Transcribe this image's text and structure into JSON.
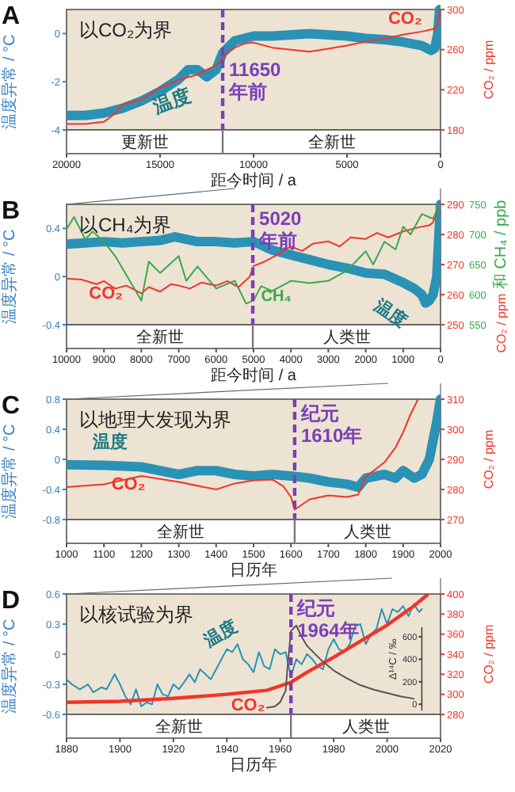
{
  "chart_data": [
    {
      "type": "line",
      "title": "A",
      "subtitle": "以CO₂为界",
      "xlabel": "距今时间 / a",
      "ylabel": "温度异常 / °C",
      "y2label": "CO₂ / ppm",
      "xlim": [
        20000,
        0
      ],
      "xticks": [
        20000,
        15000,
        10000,
        5000,
        0
      ],
      "ylim": [
        -4,
        1
      ],
      "yticks": [
        -4,
        -2,
        0
      ],
      "y2lim": [
        180,
        300
      ],
      "y2ticks": [
        180,
        220,
        260,
        300
      ],
      "series": [
        {
          "name": "温度",
          "color": "#2a92b4",
          "x": [
            20000,
            19000,
            18000,
            17000,
            16000,
            15000,
            14000,
            13500,
            13000,
            12500,
            12000,
            11650,
            11000,
            10000,
            9000,
            8000,
            7000,
            6000,
            5000,
            4000,
            3000,
            2000,
            1000,
            500,
            300,
            150,
            50
          ],
          "values": [
            -3.4,
            -3.4,
            -3.3,
            -3.1,
            -2.8,
            -2.4,
            -1.9,
            -1.5,
            -1.5,
            -1.8,
            -1.5,
            -0.8,
            -0.3,
            -0.1,
            -0.1,
            -0.05,
            0,
            -0.05,
            -0.1,
            -0.2,
            -0.25,
            -0.35,
            -0.5,
            -0.7,
            -0.6,
            0,
            1
          ]
        },
        {
          "name": "CO₂",
          "color": "#f0352a",
          "axis": "y2",
          "x": [
            20000,
            19000,
            18000,
            17500,
            17000,
            16000,
            15000,
            14000,
            13000,
            12500,
            12000,
            11500,
            11000,
            10500,
            10000,
            9000,
            8000,
            7000,
            6000,
            5000,
            4000,
            3000,
            2000,
            1000,
            500,
            200,
            100,
            50
          ],
          "values": [
            186,
            186,
            188,
            195,
            205,
            210,
            222,
            230,
            235,
            240,
            244,
            255,
            262,
            266,
            267,
            262,
            260,
            258,
            261,
            264,
            268,
            271,
            275,
            278,
            280,
            282,
            290,
            300
          ]
        }
      ],
      "ref_lines": [
        {
          "axis": "x",
          "value": 11650,
          "label": "11650 年前",
          "color": "#7a3fb8",
          "line_style": "dashed"
        }
      ],
      "annotations": [
        "更新世",
        "全新世"
      ]
    },
    {
      "type": "line",
      "title": "B",
      "subtitle": "以CH₄为界",
      "xlabel": "距今时间 / a",
      "ylabel": "温度异常 / °C",
      "y2label": "CO₂ / ppm",
      "y3label": "和 CH₄ / ppb",
      "xlim": [
        10000,
        0
      ],
      "xticks": [
        10000,
        9000,
        8000,
        7000,
        6000,
        5000,
        4000,
        3000,
        2000,
        1000,
        0
      ],
      "ylim": [
        -0.4,
        0.6
      ],
      "yticks": [
        -0.4,
        0,
        0.4
      ],
      "y2lim": [
        250,
        290
      ],
      "y2ticks": [
        250,
        260,
        270,
        280,
        290
      ],
      "y3lim": [
        550,
        750
      ],
      "y3ticks": [
        550,
        600,
        650,
        700,
        750
      ],
      "series": [
        {
          "name": "温度",
          "color": "#2a92b4",
          "x": [
            10000,
            9500,
            9000,
            8500,
            8000,
            7500,
            7100,
            6500,
            6000,
            5500,
            5000,
            4500,
            4000,
            3500,
            3000,
            2500,
            2000,
            1500,
            1000,
            700,
            500,
            400,
            300,
            200,
            100,
            50,
            0
          ],
          "values": [
            0.27,
            0.28,
            0.29,
            0.28,
            0.29,
            0.3,
            0.33,
            0.29,
            0.29,
            0.28,
            0.29,
            0.22,
            0.18,
            0.14,
            0.1,
            0.07,
            0.03,
            0.02,
            -0.05,
            -0.1,
            -0.15,
            -0.22,
            -0.2,
            -0.15,
            0,
            0.3,
            0.6
          ]
        },
        {
          "name": "CO₂",
          "color": "#f0352a",
          "axis": "y2",
          "x": [
            10000,
            9600,
            9200,
            9000,
            8700,
            8400,
            8000,
            7800,
            7500,
            7200,
            7000,
            6700,
            6400,
            6000,
            5700,
            5400,
            5100,
            5000,
            4700,
            4400,
            4000,
            3700,
            3400,
            3000,
            2700,
            2400,
            2000,
            1700,
            1400,
            1000,
            700,
            500,
            300,
            200,
            100,
            0
          ],
          "values": [
            265.3,
            265,
            263.5,
            264.5,
            262,
            263,
            260.4,
            262.5,
            261,
            263.5,
            263,
            262,
            264,
            263,
            264.5,
            262.5,
            266,
            269.5,
            271,
            273,
            276,
            274.5,
            277,
            277.7,
            276,
            279,
            278.5,
            280.5,
            279,
            281,
            282,
            282.6,
            283,
            284,
            287.5,
            290
          ]
        },
        {
          "name": "CH₄",
          "color": "#3aa84a",
          "axis": "y3",
          "x": [
            10000,
            9800,
            9500,
            9300,
            9000,
            8700,
            8500,
            8000,
            7800,
            7500,
            7000,
            6800,
            6500,
            6000,
            5500,
            5200,
            5000,
            4800,
            4500,
            4000,
            3500,
            3000,
            2500,
            2000,
            1800,
            1500,
            1200,
            1000,
            800,
            500,
            200,
            100,
            0
          ],
          "values": [
            709,
            729,
            692,
            705,
            688,
            664,
            643,
            590,
            655,
            636,
            664,
            623,
            647,
            610,
            623,
            585,
            590,
            614,
            606,
            623,
            619,
            623,
            640,
            672,
            650,
            688,
            675,
            713,
            700,
            734,
            726,
            740,
            750
          ]
        }
      ],
      "ref_lines": [
        {
          "axis": "x",
          "value": 5020,
          "label": "5020 年前",
          "color": "#7a3fb8",
          "line_style": "dashed"
        }
      ],
      "annotations": [
        "全新世",
        "人类世"
      ]
    },
    {
      "type": "line",
      "title": "C",
      "subtitle": "以地理大发现为界",
      "xlabel": "日历年",
      "ylabel": "温度异常 / °C",
      "y2label": "CO₂ / ppm",
      "xlim": [
        1000,
        2000
      ],
      "xticks": [
        1000,
        1100,
        1200,
        1300,
        1400,
        1500,
        1600,
        1700,
        1800,
        1900,
        2000
      ],
      "ylim": [
        -0.8,
        0.8
      ],
      "yticks": [
        -0.8,
        -0.4,
        0,
        0.4,
        0.8
      ],
      "y2lim": [
        270,
        310
      ],
      "y2ticks": [
        270,
        280,
        290,
        300,
        310
      ],
      "series": [
        {
          "name": "温度",
          "color": "#2a92b4",
          "x": [
            1000,
            1100,
            1200,
            1250,
            1300,
            1350,
            1400,
            1450,
            1500,
            1550,
            1600,
            1650,
            1700,
            1750,
            1780,
            1800,
            1850,
            1880,
            1900,
            1930,
            1950,
            1970,
            1990,
            2000
          ],
          "values": [
            -0.07,
            -0.08,
            -0.1,
            -0.15,
            -0.2,
            -0.15,
            -0.15,
            -0.2,
            -0.22,
            -0.2,
            -0.22,
            -0.25,
            -0.3,
            -0.33,
            -0.37,
            -0.25,
            -0.2,
            -0.25,
            -0.15,
            -0.25,
            -0.2,
            0,
            0.5,
            0.8
          ]
        },
        {
          "name": "CO₂",
          "color": "#f0352a",
          "axis": "y2",
          "x": [
            1000,
            1100,
            1200,
            1300,
            1400,
            1450,
            1500,
            1550,
            1580,
            1600,
            1610,
            1650,
            1700,
            1750,
            1780,
            1800,
            1850,
            1880,
            1900,
            1920,
            1940
          ],
          "values": [
            280.8,
            281.7,
            284.5,
            282.5,
            280,
            282,
            283,
            283.3,
            281,
            277.5,
            273.3,
            276.7,
            278,
            277.5,
            278.3,
            284.2,
            289,
            294,
            299,
            305,
            310
          ]
        }
      ],
      "ref_lines": [
        {
          "axis": "x",
          "value": 1610,
          "label": "纪元 1610年",
          "color": "#7a3fb8",
          "line_style": "dashed"
        }
      ],
      "annotations": [
        "全新世",
        "人类世"
      ]
    },
    {
      "type": "line",
      "title": "D",
      "subtitle": "以核试验为界",
      "xlabel": "日历年",
      "ylabel": "温度异常 / °C",
      "y2label": "CO₂ / ppm",
      "y3label": "Δ¹⁴C / ‰",
      "xlim": [
        1880,
        2020
      ],
      "xticks": [
        1880,
        1900,
        1920,
        1940,
        1960,
        1980,
        2000,
        2020
      ],
      "ylim": [
        -0.6,
        0.6
      ],
      "yticks": [
        -0.6,
        -0.3,
        0,
        0.3,
        0.6
      ],
      "y2lim": [
        280,
        400
      ],
      "y2ticks": [
        280,
        300,
        320,
        340,
        360,
        380,
        400
      ],
      "y3lim": [
        -90,
        980
      ],
      "y3ticks": [
        0,
        200,
        400,
        600
      ],
      "series": [
        {
          "name": "温度",
          "color": "#2a92b4",
          "x": [
            1880,
            1882,
            1885,
            1888,
            1890,
            1893,
            1895,
            1898,
            1900,
            1902,
            1904,
            1906,
            1908,
            1910,
            1912,
            1914,
            1916,
            1918,
            1920,
            1922,
            1924,
            1926,
            1928,
            1930,
            1932,
            1934,
            1936,
            1938,
            1940,
            1942,
            1944,
            1946,
            1948,
            1950,
            1952,
            1954,
            1956,
            1958,
            1960,
            1962,
            1964,
            1966,
            1968,
            1970,
            1972,
            1974,
            1976,
            1978,
            1980,
            1982,
            1984,
            1986,
            1988,
            1990,
            1992,
            1994,
            1996,
            1998,
            2000,
            2002,
            2004,
            2006,
            2008,
            2010,
            2012,
            2013
          ],
          "values": [
            -0.25,
            -0.3,
            -0.35,
            -0.3,
            -0.38,
            -0.33,
            -0.35,
            -0.2,
            -0.3,
            -0.42,
            -0.5,
            -0.35,
            -0.52,
            -0.48,
            -0.5,
            -0.3,
            -0.4,
            -0.42,
            -0.3,
            -0.35,
            -0.28,
            -0.2,
            -0.28,
            -0.15,
            -0.2,
            -0.25,
            -0.15,
            -0.05,
            0.05,
            0.02,
            0.1,
            -0.05,
            -0.1,
            -0.18,
            0.02,
            -0.12,
            -0.15,
            0.05,
            0,
            0.02,
            -0.22,
            -0.05,
            -0.1,
            0,
            -0.05,
            -0.12,
            -0.15,
            0.05,
            0.15,
            0.05,
            0.02,
            0.1,
            0.28,
            0.3,
            0.1,
            0.2,
            0.25,
            0.45,
            0.3,
            0.45,
            0.42,
            0.48,
            0.38,
            0.5,
            0.42,
            0.45
          ]
        },
        {
          "name": "CO₂",
          "color": "#f0352a",
          "axis": "y2",
          "x": [
            1880,
            1900,
            1920,
            1940,
            1955,
            1964,
            1970,
            1980,
            1990,
            2000,
            2010,
            2015
          ],
          "values": [
            292,
            293,
            296,
            300,
            304,
            312,
            322,
            337,
            353,
            369,
            388,
            399
          ]
        },
        {
          "color": "#555555",
          "axis": "y3",
          "x": [
            1955,
            1958,
            1960,
            1962,
            1963,
            1964,
            1966,
            1968,
            1970,
            1975,
            1980,
            1985,
            1990,
            1995,
            2000,
            2005,
            2010
          ],
          "values": [
            -30,
            -20,
            20,
            120,
            400,
            650,
            700,
            600,
            520,
            400,
            300,
            230,
            170,
            130,
            100,
            70,
            50
          ]
        }
      ],
      "ref_lines": [
        {
          "axis": "x",
          "value": 1964,
          "label": "纪元 1964年",
          "color": "#7a3fb8",
          "line_style": "dashed"
        }
      ],
      "annotations": [
        "全新世",
        "人类世"
      ]
    }
  ]
}
